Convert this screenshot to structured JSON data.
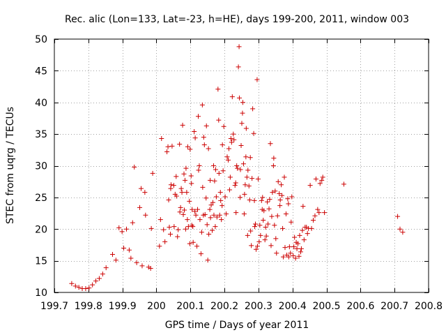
{
  "chart_data": {
    "type": "scatter",
    "title": "Rec. alic (Lon=133, Lat=-23, h=HE), days 199-200, 2011, window 003",
    "xlabel": "GPS time / Days of year 2011",
    "ylabel": "STEC from uqrg / TECUs",
    "xlim": [
      199.7,
      200.8
    ],
    "ylim": [
      10,
      50
    ],
    "grid": true,
    "marker": "plus",
    "marker_color": "#cc0000",
    "x_ticks": [
      "199.7",
      "199.8",
      "199.9",
      "200",
      "200.1",
      "200.2",
      "200.3",
      "200.4",
      "200.5",
      "200.6",
      "200.7",
      "200.8"
    ],
    "x_tick_values": [
      199.7,
      199.8,
      199.9,
      200.0,
      200.1,
      200.2,
      200.3,
      200.4,
      200.5,
      200.6,
      200.7,
      200.8
    ],
    "y_ticks": [
      "10",
      "15",
      "20",
      "25",
      "30",
      "35",
      "40",
      "45",
      "50"
    ],
    "y_tick_values": [
      10,
      15,
      20,
      25,
      30,
      35,
      40,
      45,
      50
    ],
    "points": [
      [
        199.751,
        11.4
      ],
      [
        199.762,
        11.0
      ],
      [
        199.772,
        10.8
      ],
      [
        199.782,
        10.6
      ],
      [
        199.792,
        10.6
      ],
      [
        199.802,
        10.7
      ],
      [
        199.812,
        11.2
      ],
      [
        199.822,
        11.8
      ],
      [
        199.832,
        12.2
      ],
      [
        199.842,
        12.9
      ],
      [
        199.852,
        13.9
      ],
      [
        199.871,
        16.0
      ],
      [
        199.881,
        15.1
      ],
      [
        199.89,
        20.2
      ],
      [
        199.899,
        19.6
      ],
      [
        199.904,
        17.0
      ],
      [
        199.912,
        20.0
      ],
      [
        199.92,
        16.7
      ],
      [
        199.925,
        15.4
      ],
      [
        199.93,
        21.0
      ],
      [
        199.935,
        29.8
      ],
      [
        199.942,
        14.7
      ],
      [
        199.951,
        23.4
      ],
      [
        199.955,
        26.4
      ],
      [
        199.958,
        14.2
      ],
      [
        199.966,
        25.8
      ],
      [
        199.968,
        22.2
      ],
      [
        199.977,
        14.0
      ],
      [
        199.983,
        13.8
      ],
      [
        199.985,
        20.1
      ],
      [
        199.989,
        28.8
      ],
      [
        200.009,
        17.3
      ],
      [
        200.012,
        21.5
      ],
      [
        200.015,
        34.3
      ],
      [
        200.021,
        19.9
      ],
      [
        200.025,
        18.0
      ],
      [
        200.031,
        32.2
      ],
      [
        200.034,
        33.0
      ],
      [
        200.036,
        24.6
      ],
      [
        200.038,
        20.3
      ],
      [
        200.041,
        19.2
      ],
      [
        200.042,
        26.4
      ],
      [
        200.043,
        27.0
      ],
      [
        200.046,
        33.1
      ],
      [
        200.051,
        26.9
      ],
      [
        200.052,
        20.4
      ],
      [
        200.055,
        25.5
      ],
      [
        200.058,
        28.3
      ],
      [
        200.059,
        25.2
      ],
      [
        200.062,
        18.8
      ],
      [
        200.064,
        19.9
      ],
      [
        200.068,
        33.4
      ],
      [
        200.069,
        22.7
      ],
      [
        200.071,
        23.4
      ],
      [
        200.073,
        26.4
      ],
      [
        200.075,
        25.8
      ],
      [
        200.077,
        36.4
      ],
      [
        200.079,
        22.3
      ],
      [
        200.081,
        28.7
      ],
      [
        200.082,
        23.0
      ],
      [
        200.084,
        27.7
      ],
      [
        200.086,
        20.0
      ],
      [
        200.087,
        29.6
      ],
      [
        200.089,
        25.8
      ],
      [
        200.091,
        21.5
      ],
      [
        200.092,
        33.0
      ],
      [
        200.094,
        20.4
      ],
      [
        200.097,
        24.4
      ],
      [
        200.098,
        17.7
      ],
      [
        200.099,
        32.6
      ],
      [
        200.102,
        28.4
      ],
      [
        200.103,
        27.2
      ],
      [
        200.104,
        20.6
      ],
      [
        200.105,
        23.1
      ],
      [
        200.107,
        20.4
      ],
      [
        200.108,
        17.9
      ],
      [
        200.111,
        35.4
      ],
      [
        200.113,
        22.8
      ],
      [
        200.114,
        34.4
      ],
      [
        200.116,
        22.2
      ],
      [
        200.119,
        17.3
      ],
      [
        200.121,
        23.1
      ],
      [
        200.123,
        37.8
      ],
      [
        200.124,
        29.3
      ],
      [
        200.126,
        30.0
      ],
      [
        200.128,
        21.5
      ],
      [
        200.131,
        16.1
      ],
      [
        200.133,
        19.5
      ],
      [
        200.135,
        39.6
      ],
      [
        200.136,
        26.6
      ],
      [
        200.138,
        22.2
      ],
      [
        200.139,
        34.5
      ],
      [
        200.141,
        33.3
      ],
      [
        200.143,
        22.3
      ],
      [
        200.146,
        24.9
      ],
      [
        200.147,
        36.3
      ],
      [
        200.149,
        20.7
      ],
      [
        200.151,
        15.1
      ],
      [
        200.153,
        32.7
      ],
      [
        200.154,
        19.2
      ],
      [
        200.157,
        23.1
      ],
      [
        200.158,
        27.7
      ],
      [
        200.159,
        21.8
      ],
      [
        200.161,
        23.8
      ],
      [
        200.164,
        19.8
      ],
      [
        200.166,
        24.2
      ],
      [
        200.168,
        30.0
      ],
      [
        200.169,
        22.2
      ],
      [
        200.171,
        27.6
      ],
      [
        200.173,
        20.4
      ],
      [
        200.174,
        29.4
      ],
      [
        200.176,
        25.1
      ],
      [
        200.178,
        21.9
      ],
      [
        200.181,
        42.1
      ],
      [
        200.183,
        37.2
      ],
      [
        200.184,
        28.8
      ],
      [
        200.186,
        22.2
      ],
      [
        200.188,
        25.8
      ],
      [
        200.189,
        24.5
      ],
      [
        200.191,
        21.5
      ],
      [
        200.193,
        23.7
      ],
      [
        200.194,
        33.3
      ],
      [
        200.196,
        29.2
      ],
      [
        200.198,
        36.2
      ],
      [
        200.202,
        25.1
      ],
      [
        200.205,
        22.4
      ],
      [
        200.208,
        31.4
      ],
      [
        200.211,
        30.9
      ],
      [
        200.213,
        32.7
      ],
      [
        200.215,
        26.2
      ],
      [
        200.217,
        28.2
      ],
      [
        200.219,
        34.3
      ],
      [
        200.221,
        33.7
      ],
      [
        200.223,
        40.9
      ],
      [
        200.226,
        35.0
      ],
      [
        200.228,
        34.1
      ],
      [
        200.231,
        26.9
      ],
      [
        200.233,
        27.3
      ],
      [
        200.234,
        22.6
      ],
      [
        200.236,
        30.0
      ],
      [
        200.238,
        29.6
      ],
      [
        200.241,
        45.6
      ],
      [
        200.243,
        48.8
      ],
      [
        200.244,
        40.7
      ],
      [
        200.246,
        25.0
      ],
      [
        200.247,
        29.4
      ],
      [
        200.249,
        33.2
      ],
      [
        200.251,
        36.7
      ],
      [
        200.253,
        38.3
      ],
      [
        200.254,
        40.0
      ],
      [
        200.256,
        30.3
      ],
      [
        200.258,
        22.4
      ],
      [
        200.259,
        25.5
      ],
      [
        200.261,
        27.0
      ],
      [
        200.263,
        31.4
      ],
      [
        200.264,
        35.9
      ],
      [
        200.266,
        28.2
      ],
      [
        200.268,
        19.0
      ],
      [
        200.269,
        29.3
      ],
      [
        200.272,
        26.8
      ],
      [
        200.274,
        24.6
      ],
      [
        200.276,
        31.3
      ],
      [
        200.277,
        19.7
      ],
      [
        200.279,
        17.4
      ],
      [
        200.281,
        28.0
      ],
      [
        200.283,
        39.0
      ],
      [
        200.286,
        35.1
      ],
      [
        200.288,
        24.5
      ],
      [
        200.289,
        20.4
      ],
      [
        200.291,
        20.8
      ],
      [
        200.293,
        16.8
      ],
      [
        200.296,
        43.6
      ],
      [
        200.297,
        17.3
      ],
      [
        200.299,
        27.9
      ],
      [
        200.302,
        18.0
      ],
      [
        200.304,
        20.6
      ],
      [
        200.306,
        19.0
      ],
      [
        200.309,
        24.5
      ],
      [
        200.311,
        23.1
      ],
      [
        200.312,
        25.0
      ],
      [
        200.314,
        21.4
      ],
      [
        200.316,
        22.9
      ],
      [
        200.319,
        18.3
      ],
      [
        200.321,
        20.3
      ],
      [
        200.323,
        18.9
      ],
      [
        200.326,
        24.3
      ],
      [
        200.328,
        20.8
      ],
      [
        200.331,
        23.2
      ],
      [
        200.333,
        24.7
      ],
      [
        200.335,
        33.5
      ],
      [
        200.337,
        17.4
      ],
      [
        200.339,
        22.0
      ],
      [
        200.341,
        25.8
      ],
      [
        200.344,
        30.0
      ],
      [
        200.345,
        31.2
      ],
      [
        200.347,
        20.6
      ],
      [
        200.349,
        26.0
      ],
      [
        200.351,
        18.5
      ],
      [
        200.353,
        16.2
      ],
      [
        200.356,
        22.1
      ],
      [
        200.358,
        27.5
      ],
      [
        200.361,
        25.6
      ],
      [
        200.363,
        23.7
      ],
      [
        200.364,
        24.6
      ],
      [
        200.367,
        27.0
      ],
      [
        200.369,
        25.3
      ],
      [
        200.371,
        20.1
      ],
      [
        200.373,
        15.6
      ],
      [
        200.376,
        28.2
      ],
      [
        200.378,
        17.1
      ],
      [
        200.381,
        22.4
      ],
      [
        200.383,
        15.9
      ],
      [
        200.386,
        24.8
      ],
      [
        200.388,
        24.0
      ],
      [
        200.389,
        15.6
      ],
      [
        200.391,
        17.2
      ],
      [
        200.394,
        16.2
      ],
      [
        200.396,
        21.1
      ],
      [
        200.398,
        25.1
      ],
      [
        200.402,
        15.8
      ],
      [
        200.404,
        17.2
      ],
      [
        200.406,
        18.7
      ],
      [
        200.409,
        15.4
      ],
      [
        200.411,
        17.9
      ],
      [
        200.413,
        16.9
      ],
      [
        200.416,
        17.7
      ],
      [
        200.419,
        15.7
      ],
      [
        200.421,
        19.0
      ],
      [
        200.424,
        16.4
      ],
      [
        200.426,
        16.9
      ],
      [
        200.429,
        19.8
      ],
      [
        200.431,
        23.6
      ],
      [
        200.434,
        18.3
      ],
      [
        200.437,
        20.3
      ],
      [
        200.441,
        20.3
      ],
      [
        200.444,
        19.3
      ],
      [
        200.447,
        20.1
      ],
      [
        200.452,
        26.9
      ],
      [
        200.456,
        20.1
      ],
      [
        200.461,
        21.4
      ],
      [
        200.466,
        22.1
      ],
      [
        200.469,
        27.9
      ],
      [
        200.474,
        23.1
      ],
      [
        200.478,
        22.6
      ],
      [
        200.481,
        27.2
      ],
      [
        200.486,
        27.7
      ],
      [
        200.489,
        28.2
      ],
      [
        200.494,
        22.6
      ],
      [
        200.551,
        27.1
      ],
      [
        200.709,
        22.0
      ],
      [
        200.716,
        20.0
      ],
      [
        200.724,
        19.5
      ]
    ]
  }
}
